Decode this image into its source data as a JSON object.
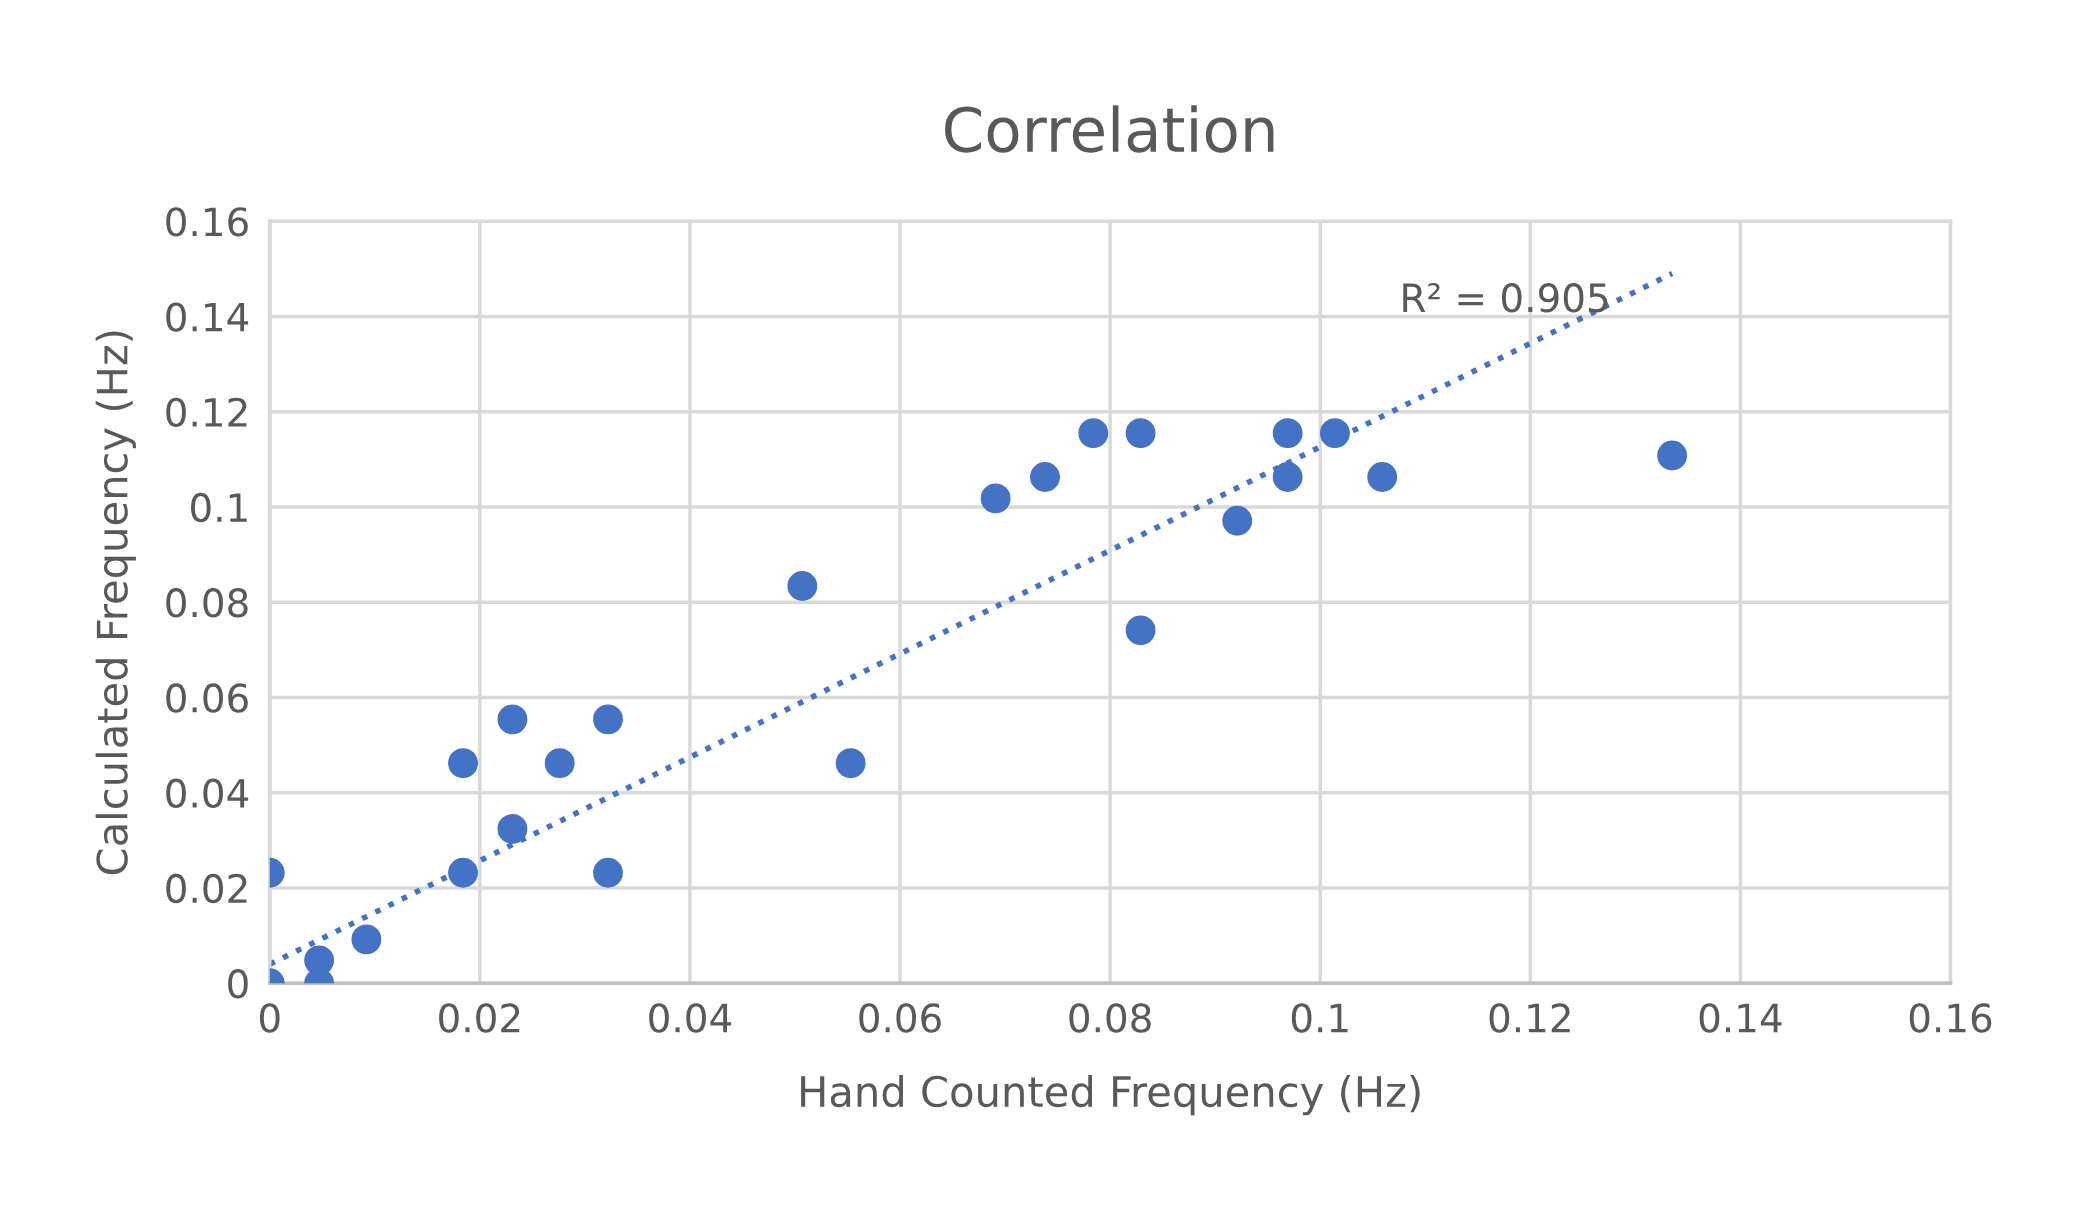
{
  "chart_data": {
    "type": "scatter",
    "title": "Correlation",
    "xlabel": "Hand Counted Frequency (Hz)",
    "ylabel": "Calculated Frequency (Hz)",
    "xlim": [
      0,
      0.16
    ],
    "ylim": [
      0,
      0.16
    ],
    "xticks": [
      0,
      0.02,
      0.04,
      0.06,
      0.08,
      0.1,
      0.12,
      0.14,
      0.16
    ],
    "yticks": [
      0,
      0.02,
      0.04,
      0.06,
      0.08,
      0.1,
      0.12,
      0.14,
      0.16
    ],
    "grid": true,
    "legend": false,
    "marker": "circle",
    "series": [
      {
        "color": "#4472c4",
        "x": [
          0,
          0,
          0.0047,
          0.0047,
          0.0092,
          0.0184,
          0.0184,
          0.0231,
          0.0231,
          0.0276,
          0.0322,
          0.0322,
          0.0507,
          0.0553,
          0.0691,
          0.0738,
          0.0784,
          0.0829,
          0.0829,
          0.0921,
          0.0969,
          0.0969,
          0.1014,
          0.1059,
          0.1335
        ],
        "values": [
          0,
          0.0232,
          0.0048,
          0,
          0.0092,
          0.0462,
          0.0232,
          0.0554,
          0.0324,
          0.0462,
          0.0554,
          0.0232,
          0.0834,
          0.0462,
          0.1018,
          0.1063,
          0.1155,
          0.1155,
          0.0741,
          0.0971,
          0.1155,
          0.1063,
          0.1155,
          0.1063,
          0.1108
        ]
      },
      {
        "type": "line",
        "color": "#4472c4",
        "marker": "none",
        "line_style": "dotted",
        "x": [
          0,
          0.1335
        ],
        "values": [
          0.004,
          0.149
        ]
      }
    ],
    "annotations": [
      "R² = 0.905"
    ]
  }
}
